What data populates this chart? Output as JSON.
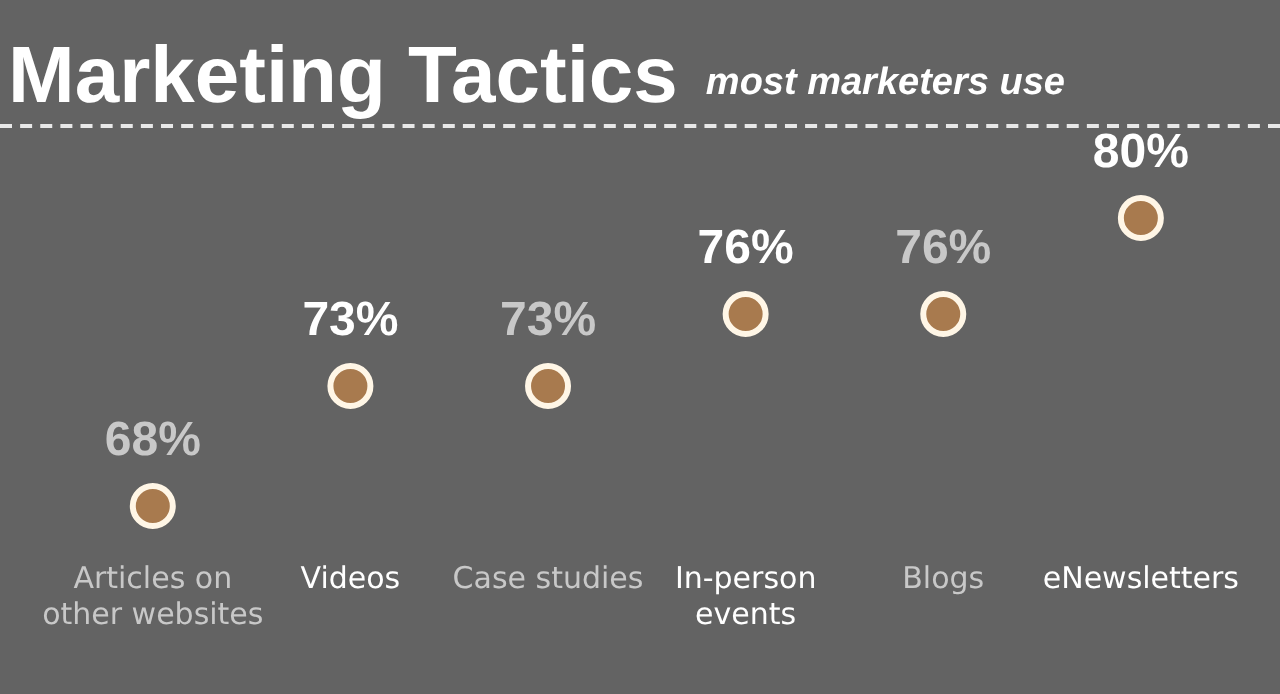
{
  "chart_data": {
    "type": "scatter",
    "title": "Marketing Tactics",
    "subtitle": "most marketers use",
    "categories": [
      "Articles on other websites",
      "Videos",
      "Case studies",
      "In-person events",
      "Blogs",
      "eNewsletters"
    ],
    "series": [
      {
        "color": "#a87a4e",
        "values": [
          68,
          73,
          73,
          76,
          76,
          80
        ],
        "value_labels": [
          "68%",
          "73%",
          "73%",
          "76%",
          "76%",
          "80%"
        ]
      }
    ],
    "tick_labels": "x",
    "legend": false,
    "marker": "circle"
  }
}
